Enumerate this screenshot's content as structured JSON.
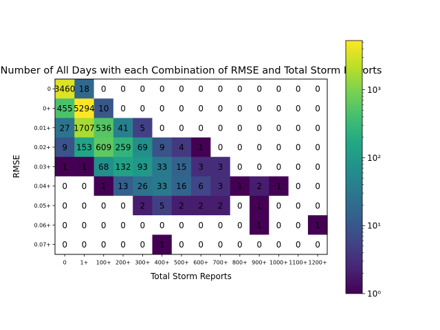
{
  "chart_data": {
    "type": "heatmap",
    "title": "Number of All Days with each Combination of RMSE and Total Storm Reports",
    "xlabel": "Total Storm Reports",
    "ylabel": "RMSE",
    "x_categories": [
      "0",
      "1+",
      "100+",
      "200+",
      "300+",
      "400+",
      "500+",
      "600+",
      "700+",
      "800+",
      "900+",
      "1000+",
      "1100+",
      "1200+"
    ],
    "y_categories": [
      "0",
      "0+",
      "0.01+",
      "0.02+",
      "0.03+",
      "0.04+",
      "0.05+",
      "0.06+",
      "0.07+"
    ],
    "values": [
      [
        3460,
        18,
        0,
        0,
        0,
        0,
        0,
        0,
        0,
        0,
        0,
        0,
        0,
        0
      ],
      [
        455,
        5294,
        10,
        0,
        0,
        0,
        0,
        0,
        0,
        0,
        0,
        0,
        0,
        0
      ],
      [
        27,
        1707,
        536,
        41,
        5,
        0,
        0,
        0,
        0,
        0,
        0,
        0,
        0,
        0
      ],
      [
        9,
        153,
        609,
        259,
        69,
        9,
        4,
        1,
        0,
        0,
        0,
        0,
        0,
        0
      ],
      [
        1,
        1,
        68,
        132,
        93,
        33,
        15,
        3,
        3,
        0,
        0,
        0,
        0,
        0
      ],
      [
        0,
        0,
        1,
        13,
        26,
        33,
        16,
        6,
        3,
        1,
        2,
        1,
        0,
        0
      ],
      [
        0,
        0,
        0,
        0,
        2,
        5,
        2,
        2,
        2,
        0,
        1,
        0,
        0,
        0
      ],
      [
        0,
        0,
        0,
        0,
        0,
        0,
        0,
        0,
        0,
        0,
        1,
        0,
        0,
        1
      ],
      [
        0,
        0,
        0,
        0,
        0,
        1,
        0,
        0,
        0,
        0,
        0,
        0,
        0,
        0
      ]
    ],
    "colormap": "viridis",
    "zero_color": "#ffffff",
    "colorbar": {
      "scale": "log",
      "range": [
        1,
        5294
      ],
      "tick_labels": [
        "10⁰",
        "10¹",
        "10²",
        "10³"
      ],
      "tick_values": [
        1,
        10,
        100,
        1000
      ]
    }
  }
}
